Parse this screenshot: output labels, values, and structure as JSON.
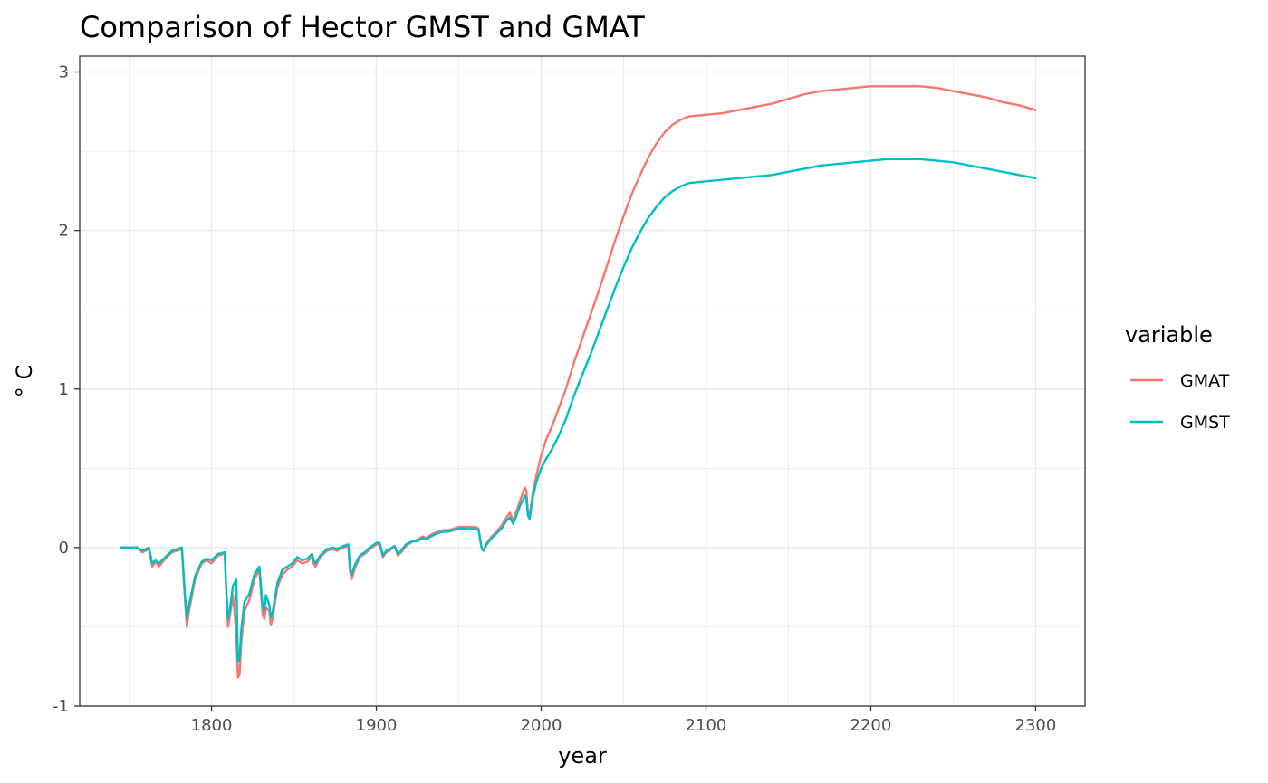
{
  "chart_data": {
    "type": "line",
    "title": "Comparison of Hector GMST and GMAT",
    "xlabel": "year",
    "ylabel": "° C",
    "xlim": [
      1720,
      2330
    ],
    "ylim": [
      -1.0,
      3.1
    ],
    "x_ticks": [
      1800,
      1900,
      2000,
      2100,
      2200,
      2300
    ],
    "x_tick_labels": [
      "1800",
      "1900",
      "2000",
      "2100",
      "2200",
      "2300"
    ],
    "y_ticks": [
      -1,
      0,
      1,
      2,
      3
    ],
    "y_tick_labels": [
      "-1",
      "0",
      "1",
      "2",
      "3"
    ],
    "grid": true,
    "legend": {
      "title": "variable",
      "position": "right"
    },
    "series": [
      {
        "name": "GMAT",
        "color": "#F8766D",
        "points": [
          [
            1745,
            0.0
          ],
          [
            1755,
            0.0
          ],
          [
            1758,
            -0.03
          ],
          [
            1762,
            -0.01
          ],
          [
            1764,
            -0.12
          ],
          [
            1766,
            -0.09
          ],
          [
            1768,
            -0.12
          ],
          [
            1772,
            -0.07
          ],
          [
            1776,
            -0.03
          ],
          [
            1782,
            -0.01
          ],
          [
            1784,
            -0.35
          ],
          [
            1785,
            -0.5
          ],
          [
            1786,
            -0.42
          ],
          [
            1790,
            -0.2
          ],
          [
            1794,
            -0.1
          ],
          [
            1797,
            -0.08
          ],
          [
            1800,
            -0.1
          ],
          [
            1804,
            -0.05
          ],
          [
            1808,
            -0.04
          ],
          [
            1809,
            -0.3
          ],
          [
            1810,
            -0.5
          ],
          [
            1811,
            -0.44
          ],
          [
            1813,
            -0.3
          ],
          [
            1815,
            -0.55
          ],
          [
            1816,
            -0.82
          ],
          [
            1817,
            -0.8
          ],
          [
            1818,
            -0.6
          ],
          [
            1820,
            -0.4
          ],
          [
            1823,
            -0.33
          ],
          [
            1826,
            -0.2
          ],
          [
            1829,
            -0.14
          ],
          [
            1831,
            -0.42
          ],
          [
            1832,
            -0.45
          ],
          [
            1833,
            -0.38
          ],
          [
            1835,
            -0.4
          ],
          [
            1836,
            -0.49
          ],
          [
            1837,
            -0.45
          ],
          [
            1840,
            -0.25
          ],
          [
            1843,
            -0.17
          ],
          [
            1846,
            -0.14
          ],
          [
            1849,
            -0.12
          ],
          [
            1852,
            -0.08
          ],
          [
            1855,
            -0.1
          ],
          [
            1858,
            -0.09
          ],
          [
            1861,
            -0.06
          ],
          [
            1862,
            -0.1
          ],
          [
            1863,
            -0.12
          ],
          [
            1866,
            -0.06
          ],
          [
            1870,
            -0.02
          ],
          [
            1874,
            -0.01
          ],
          [
            1876,
            -0.02
          ],
          [
            1880,
            0.0
          ],
          [
            1883,
            0.01
          ],
          [
            1884,
            -0.15
          ],
          [
            1885,
            -0.2
          ],
          [
            1887,
            -0.13
          ],
          [
            1890,
            -0.06
          ],
          [
            1893,
            -0.04
          ],
          [
            1896,
            -0.01
          ],
          [
            1900,
            0.02
          ],
          [
            1902,
            0.02
          ],
          [
            1904,
            -0.06
          ],
          [
            1906,
            -0.03
          ],
          [
            1908,
            -0.02
          ],
          [
            1911,
            0.01
          ],
          [
            1913,
            -0.05
          ],
          [
            1915,
            -0.03
          ],
          [
            1918,
            0.01
          ],
          [
            1922,
            0.04
          ],
          [
            1925,
            0.05
          ],
          [
            1928,
            0.07
          ],
          [
            1930,
            0.06
          ],
          [
            1933,
            0.08
          ],
          [
            1937,
            0.1
          ],
          [
            1941,
            0.11
          ],
          [
            1944,
            0.11
          ],
          [
            1947,
            0.12
          ],
          [
            1950,
            0.13
          ],
          [
            1954,
            0.13
          ],
          [
            1957,
            0.13
          ],
          [
            1960,
            0.13
          ],
          [
            1962,
            0.12
          ],
          [
            1964,
            -0.01
          ],
          [
            1965,
            -0.02
          ],
          [
            1967,
            0.03
          ],
          [
            1970,
            0.07
          ],
          [
            1973,
            0.1
          ],
          [
            1976,
            0.14
          ],
          [
            1979,
            0.19
          ],
          [
            1981,
            0.22
          ],
          [
            1983,
            0.17
          ],
          [
            1985,
            0.23
          ],
          [
            1987,
            0.29
          ],
          [
            1989,
            0.35
          ],
          [
            1990,
            0.38
          ],
          [
            1991,
            0.36
          ],
          [
            1992,
            0.22
          ],
          [
            1993,
            0.2
          ],
          [
            1995,
            0.35
          ],
          [
            1997,
            0.45
          ],
          [
            2000,
            0.58
          ],
          [
            2003,
            0.68
          ],
          [
            2006,
            0.75
          ],
          [
            2010,
            0.86
          ],
          [
            2015,
            1.0
          ],
          [
            2020,
            1.17
          ],
          [
            2025,
            1.32
          ],
          [
            2030,
            1.47
          ],
          [
            2035,
            1.62
          ],
          [
            2040,
            1.78
          ],
          [
            2045,
            1.94
          ],
          [
            2050,
            2.09
          ],
          [
            2055,
            2.23
          ],
          [
            2060,
            2.35
          ],
          [
            2065,
            2.46
          ],
          [
            2070,
            2.55
          ],
          [
            2075,
            2.62
          ],
          [
            2080,
            2.67
          ],
          [
            2085,
            2.7
          ],
          [
            2090,
            2.72
          ],
          [
            2100,
            2.73
          ],
          [
            2110,
            2.74
          ],
          [
            2120,
            2.76
          ],
          [
            2130,
            2.78
          ],
          [
            2140,
            2.8
          ],
          [
            2150,
            2.83
          ],
          [
            2160,
            2.86
          ],
          [
            2170,
            2.88
          ],
          [
            2180,
            2.89
          ],
          [
            2190,
            2.9
          ],
          [
            2200,
            2.91
          ],
          [
            2210,
            2.91
          ],
          [
            2220,
            2.91
          ],
          [
            2230,
            2.91
          ],
          [
            2240,
            2.9
          ],
          [
            2250,
            2.88
          ],
          [
            2260,
            2.86
          ],
          [
            2270,
            2.84
          ],
          [
            2280,
            2.81
          ],
          [
            2290,
            2.79
          ],
          [
            2300,
            2.76
          ]
        ]
      },
      {
        "name": "GMST",
        "color": "#00BFC4",
        "points": [
          [
            1745,
            0.0
          ],
          [
            1755,
            0.0
          ],
          [
            1758,
            -0.02
          ],
          [
            1762,
            0.0
          ],
          [
            1764,
            -0.1
          ],
          [
            1766,
            -0.08
          ],
          [
            1768,
            -0.1
          ],
          [
            1772,
            -0.06
          ],
          [
            1776,
            -0.02
          ],
          [
            1782,
            0.0
          ],
          [
            1784,
            -0.32
          ],
          [
            1785,
            -0.45
          ],
          [
            1786,
            -0.38
          ],
          [
            1790,
            -0.18
          ],
          [
            1794,
            -0.09
          ],
          [
            1797,
            -0.07
          ],
          [
            1800,
            -0.08
          ],
          [
            1804,
            -0.04
          ],
          [
            1808,
            -0.03
          ],
          [
            1809,
            -0.28
          ],
          [
            1810,
            -0.45
          ],
          [
            1811,
            -0.4
          ],
          [
            1813,
            -0.24
          ],
          [
            1815,
            -0.2
          ],
          [
            1816,
            -0.72
          ],
          [
            1817,
            -0.7
          ],
          [
            1818,
            -0.52
          ],
          [
            1820,
            -0.34
          ],
          [
            1823,
            -0.29
          ],
          [
            1826,
            -0.17
          ],
          [
            1829,
            -0.12
          ],
          [
            1831,
            -0.37
          ],
          [
            1832,
            -0.4
          ],
          [
            1833,
            -0.3
          ],
          [
            1835,
            -0.36
          ],
          [
            1836,
            -0.44
          ],
          [
            1837,
            -0.41
          ],
          [
            1840,
            -0.22
          ],
          [
            1843,
            -0.14
          ],
          [
            1846,
            -0.12
          ],
          [
            1849,
            -0.1
          ],
          [
            1852,
            -0.06
          ],
          [
            1855,
            -0.08
          ],
          [
            1858,
            -0.07
          ],
          [
            1861,
            -0.04
          ],
          [
            1862,
            -0.08
          ],
          [
            1863,
            -0.1
          ],
          [
            1866,
            -0.05
          ],
          [
            1870,
            -0.01
          ],
          [
            1874,
            0.0
          ],
          [
            1876,
            -0.01
          ],
          [
            1880,
            0.01
          ],
          [
            1883,
            0.02
          ],
          [
            1884,
            -0.13
          ],
          [
            1885,
            -0.17
          ],
          [
            1887,
            -0.11
          ],
          [
            1890,
            -0.05
          ],
          [
            1893,
            -0.03
          ],
          [
            1896,
            0.0
          ],
          [
            1900,
            0.03
          ],
          [
            1902,
            0.03
          ],
          [
            1904,
            -0.05
          ],
          [
            1906,
            -0.02
          ],
          [
            1908,
            -0.01
          ],
          [
            1911,
            0.01
          ],
          [
            1913,
            -0.04
          ],
          [
            1915,
            -0.02
          ],
          [
            1918,
            0.02
          ],
          [
            1922,
            0.04
          ],
          [
            1925,
            0.04
          ],
          [
            1928,
            0.06
          ],
          [
            1930,
            0.05
          ],
          [
            1933,
            0.07
          ],
          [
            1937,
            0.09
          ],
          [
            1941,
            0.1
          ],
          [
            1944,
            0.1
          ],
          [
            1947,
            0.11
          ],
          [
            1950,
            0.12
          ],
          [
            1954,
            0.12
          ],
          [
            1957,
            0.12
          ],
          [
            1960,
            0.12
          ],
          [
            1962,
            0.11
          ],
          [
            1964,
            -0.01
          ],
          [
            1965,
            -0.02
          ],
          [
            1967,
            0.02
          ],
          [
            1970,
            0.06
          ],
          [
            1973,
            0.09
          ],
          [
            1976,
            0.12
          ],
          [
            1979,
            0.17
          ],
          [
            1981,
            0.19
          ],
          [
            1983,
            0.15
          ],
          [
            1985,
            0.2
          ],
          [
            1987,
            0.26
          ],
          [
            1989,
            0.3
          ],
          [
            1990,
            0.33
          ],
          [
            1991,
            0.31
          ],
          [
            1992,
            0.2
          ],
          [
            1993,
            0.18
          ],
          [
            1995,
            0.32
          ],
          [
            1997,
            0.41
          ],
          [
            2000,
            0.5
          ],
          [
            2003,
            0.56
          ],
          [
            2006,
            0.61
          ],
          [
            2010,
            0.69
          ],
          [
            2015,
            0.81
          ],
          [
            2020,
            0.96
          ],
          [
            2025,
            1.09
          ],
          [
            2030,
            1.22
          ],
          [
            2035,
            1.36
          ],
          [
            2040,
            1.5
          ],
          [
            2045,
            1.64
          ],
          [
            2050,
            1.77
          ],
          [
            2055,
            1.89
          ],
          [
            2060,
            1.99
          ],
          [
            2065,
            2.08
          ],
          [
            2070,
            2.15
          ],
          [
            2075,
            2.21
          ],
          [
            2080,
            2.25
          ],
          [
            2085,
            2.28
          ],
          [
            2090,
            2.3
          ],
          [
            2100,
            2.31
          ],
          [
            2110,
            2.32
          ],
          [
            2120,
            2.33
          ],
          [
            2130,
            2.34
          ],
          [
            2140,
            2.35
          ],
          [
            2150,
            2.37
          ],
          [
            2160,
            2.39
          ],
          [
            2170,
            2.41
          ],
          [
            2180,
            2.42
          ],
          [
            2190,
            2.43
          ],
          [
            2200,
            2.44
          ],
          [
            2210,
            2.45
          ],
          [
            2220,
            2.45
          ],
          [
            2230,
            2.45
          ],
          [
            2240,
            2.44
          ],
          [
            2250,
            2.43
          ],
          [
            2260,
            2.41
          ],
          [
            2270,
            2.39
          ],
          [
            2280,
            2.37
          ],
          [
            2290,
            2.35
          ],
          [
            2300,
            2.33
          ]
        ]
      }
    ]
  }
}
